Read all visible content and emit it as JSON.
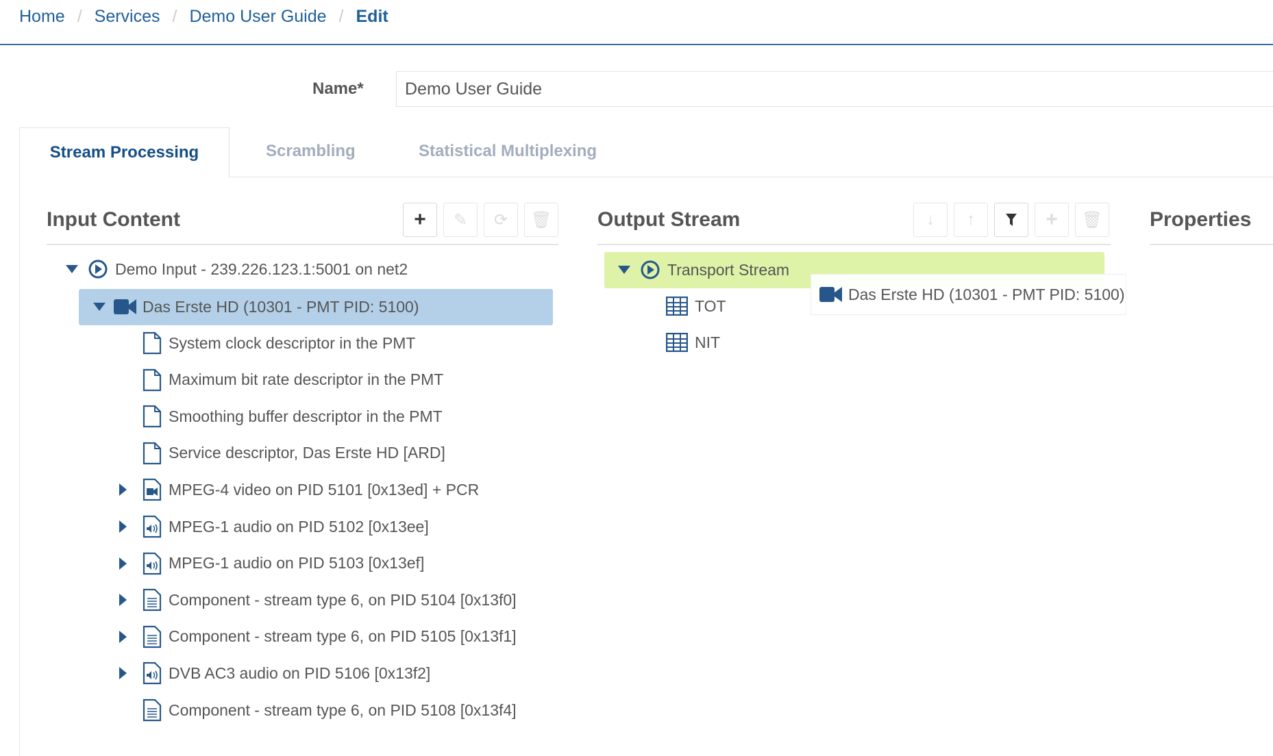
{
  "breadcrumb": [
    {
      "label": "Home"
    },
    {
      "label": "Services"
    },
    {
      "label": "Demo User Guide"
    },
    {
      "label": "Edit"
    }
  ],
  "separator": "/",
  "name": {
    "label": "Name*",
    "value": "Demo User Guide"
  },
  "tabs": [
    {
      "label": "Stream Processing",
      "active": true
    },
    {
      "label": "Scrambling"
    },
    {
      "label": "Statistical Multiplexing"
    }
  ],
  "input_content": {
    "title": "Input Content",
    "buttons": [
      "plus-icon",
      "edit-icon",
      "refresh-icon",
      "trash-icon"
    ],
    "tree": {
      "root": "Demo Input - 239.226.123.1:5001 on net2",
      "service": "Das Erste HD (10301 - PMT PID: 5100)",
      "children": [
        {
          "label": "System clock descriptor in the PMT",
          "icon": "file",
          "exp": false
        },
        {
          "label": "Maximum bit rate descriptor in the PMT",
          "icon": "file",
          "exp": false
        },
        {
          "label": "Smoothing buffer descriptor in the PMT",
          "icon": "file",
          "exp": false
        },
        {
          "label": "Service descriptor, Das Erste HD [ARD]",
          "icon": "file",
          "exp": false
        },
        {
          "label": "MPEG-4 video on PID 5101 [0x13ed] + PCR",
          "icon": "video",
          "exp": true
        },
        {
          "label": "MPEG-1 audio on PID 5102 [0x13ee]",
          "icon": "audio",
          "exp": true
        },
        {
          "label": "MPEG-1 audio on PID 5103 [0x13ef]",
          "icon": "audio",
          "exp": true
        },
        {
          "label": "Component - stream type 6, on PID 5104 [0x13f0]",
          "icon": "text",
          "exp": true
        },
        {
          "label": "Component - stream type 6, on PID 5105 [0x13f1]",
          "icon": "text",
          "exp": true
        },
        {
          "label": "DVB AC3 audio on PID 5106 [0x13f2]",
          "icon": "audio",
          "exp": true
        },
        {
          "label": "Component - stream type 6, on PID 5108 [0x13f4]",
          "icon": "text",
          "exp": false
        }
      ]
    }
  },
  "output_stream": {
    "title": "Output Stream",
    "buttons": [
      "arrow-down-icon",
      "arrow-up-icon",
      "filter-icon",
      "plus-icon",
      "trash-icon"
    ],
    "root": "Transport Stream",
    "tables": [
      "TOT",
      "NIT"
    ],
    "drag_item": "Das Erste HD (10301 - PMT PID: 5100)"
  },
  "properties": {
    "title": "Properties"
  },
  "colors": {
    "link": "#1f5f99",
    "icon": "#27578a",
    "selected": "#b3d0e8",
    "drop_target": "#dff3a8"
  }
}
